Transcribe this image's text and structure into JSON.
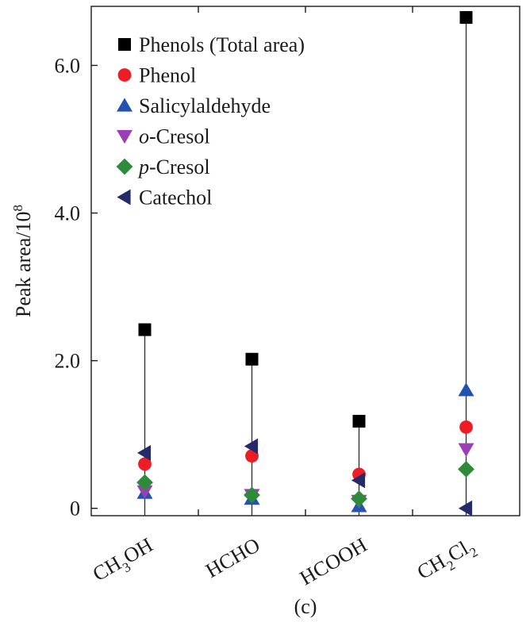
{
  "chart_data": {
    "type": "scatter",
    "categories": [
      "CH3OH",
      "HCHO",
      "HCOOH",
      "CH2Cl2"
    ],
    "category_labels": [
      {
        "base": "CH",
        "sub": "3",
        "rest": "OH"
      },
      {
        "base": "HCHO",
        "sub": "",
        "rest": ""
      },
      {
        "base": "HCOOH",
        "sub": "",
        "rest": ""
      },
      {
        "base": "CH",
        "sub": "2",
        "rest": "Cl",
        "sub2": "2"
      }
    ],
    "ylabel": {
      "base": "Peak area/10",
      "sup": "8"
    },
    "ylim": [
      -0.1,
      6.8
    ],
    "yticks": [
      0,
      2.0,
      4.0,
      6.0
    ],
    "ytick_labels": [
      "0",
      "2.0",
      "4.0",
      "6.0"
    ],
    "caption": "(c)",
    "legend_position": "top-left",
    "grid": false,
    "series": [
      {
        "name": "Phenols (Total area)",
        "name_prefix": "",
        "name_italic": "",
        "marker": "square",
        "color": "#000000",
        "values": [
          2.42,
          2.02,
          1.18,
          6.65
        ]
      },
      {
        "name": "Phenol",
        "name_prefix": "",
        "name_italic": "",
        "marker": "circle",
        "color": "#ee1c25",
        "values": [
          0.6,
          0.71,
          0.46,
          1.1
        ]
      },
      {
        "name": "Salicylaldehyde",
        "name_prefix": "",
        "name_italic": "",
        "marker": "triangle-up",
        "color": "#2452b0",
        "values": [
          0.21,
          0.13,
          0.03,
          1.6
        ]
      },
      {
        "name": "-Cresol",
        "name_prefix": "o",
        "name_italic": "o",
        "marker": "triangle-down",
        "color": "#9b3fb6",
        "values": [
          0.23,
          0.18,
          0.1,
          0.8
        ]
      },
      {
        "name": "-Cresol",
        "name_prefix": "p",
        "name_italic": "p",
        "marker": "diamond",
        "color": "#2e8b3a",
        "values": [
          0.35,
          0.18,
          0.13,
          0.53
        ]
      },
      {
        "name": "Catechol",
        "name_prefix": "",
        "name_italic": "",
        "marker": "triangle-left",
        "color": "#252a6b",
        "values": [
          0.75,
          0.84,
          0.38,
          0.0
        ]
      }
    ]
  }
}
